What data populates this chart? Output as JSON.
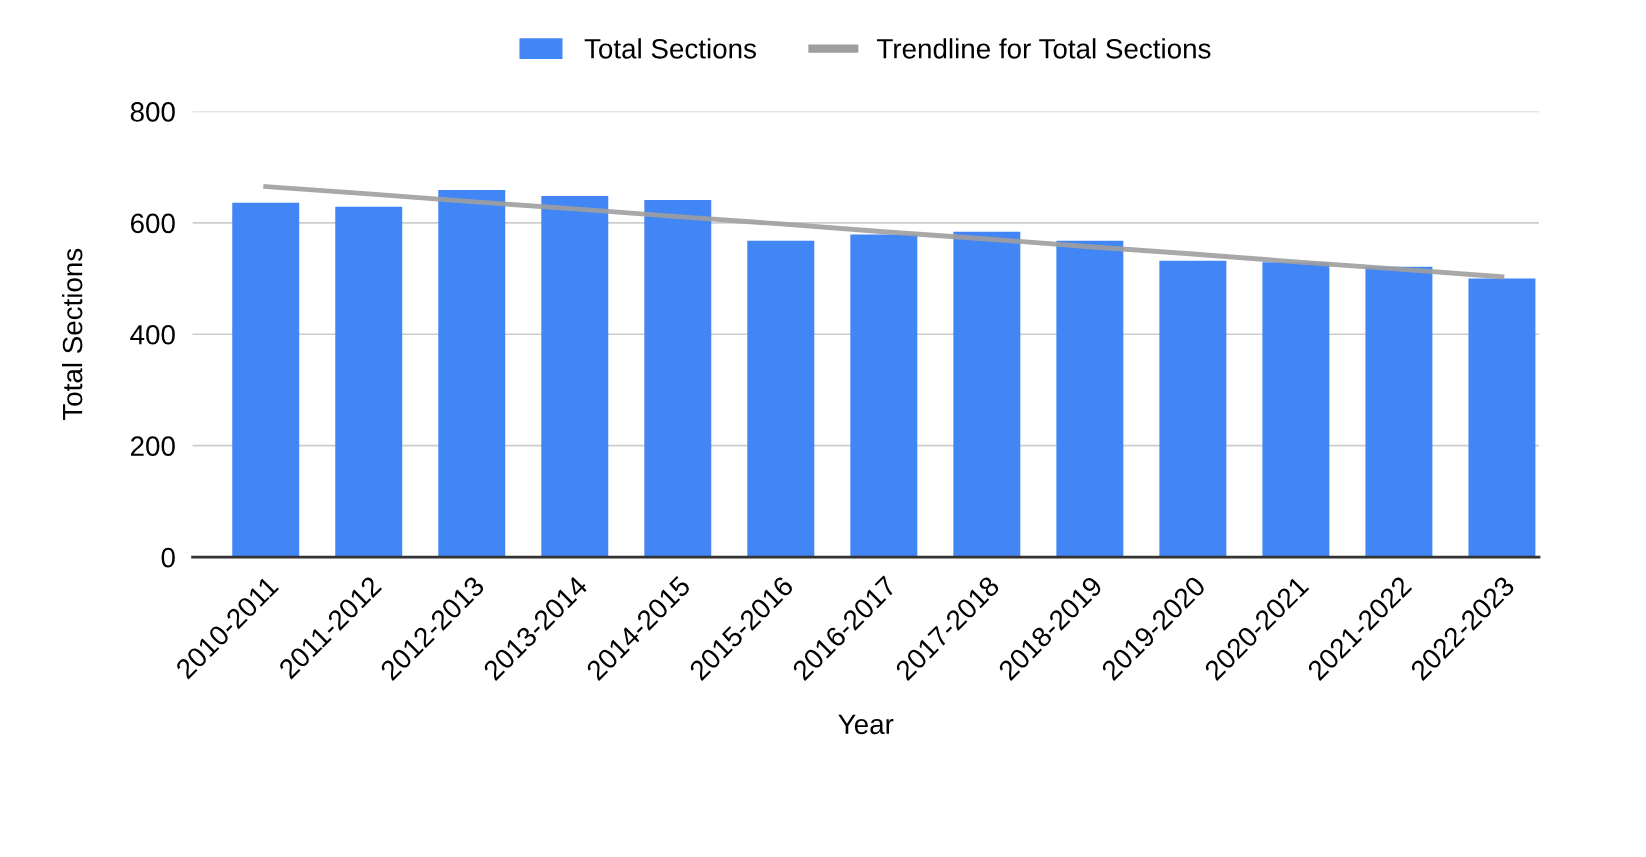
{
  "chart_data": {
    "type": "bar",
    "xlabel": "Year",
    "ylabel": "Total Sections",
    "categories": [
      "2010-2011",
      "2011-2012",
      "2012-2013",
      "2013-2014",
      "2014-2015",
      "2015-2016",
      "2016-2017",
      "2017-2018",
      "2018-2019",
      "2019-2020",
      "2020-2021",
      "2021-2022",
      "2022-2023"
    ],
    "series": [
      {
        "name": "Total Sections",
        "color": "#4285f4",
        "values": [
          636,
          629,
          659,
          648,
          641,
          568,
          579,
          584,
          568,
          532,
          529,
          521,
          500
        ]
      },
      {
        "name": "Trendline for Total Sections",
        "type": "line",
        "color": "#9e9e9e",
        "values": [
          665,
          652,
          638,
          625,
          611,
          598,
          584,
          571,
          557,
          544,
          530,
          517,
          503
        ]
      }
    ],
    "ylim": [
      0,
      800
    ],
    "yticks": [
      0,
      200,
      400,
      600,
      800
    ],
    "grid": "y",
    "legend": "top"
  }
}
